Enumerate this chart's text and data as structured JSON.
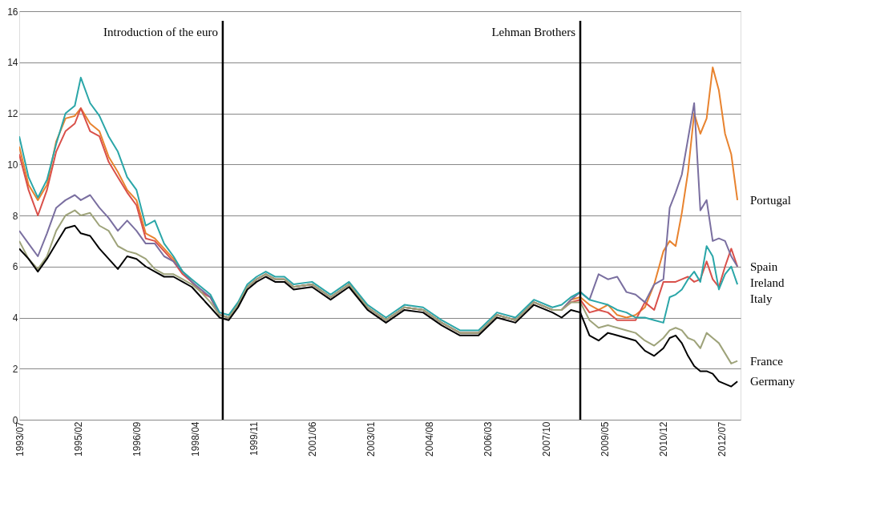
{
  "chart_data": {
    "type": "line",
    "grid": "y",
    "x": [
      "1993-07",
      "1993-10",
      "1994-01",
      "1994-04",
      "1994-07",
      "1994-10",
      "1995-01",
      "1995-03",
      "1995-06",
      "1995-09",
      "1995-12",
      "1996-03",
      "1996-06",
      "1996-09",
      "1996-12",
      "1997-03",
      "1997-06",
      "1997-09",
      "1997-12",
      "1998-03",
      "1998-06",
      "1998-09",
      "1998-12",
      "1999-03",
      "1999-06",
      "1999-09",
      "1999-12",
      "2000-03",
      "2000-06",
      "2000-09",
      "2000-12",
      "2001-06",
      "2001-12",
      "2002-06",
      "2002-12",
      "2003-06",
      "2003-12",
      "2004-06",
      "2004-12",
      "2005-06",
      "2005-12",
      "2006-06",
      "2006-12",
      "2007-06",
      "2007-12",
      "2008-03",
      "2008-06",
      "2008-09",
      "2008-12",
      "2009-03",
      "2009-06",
      "2009-09",
      "2009-12",
      "2010-03",
      "2010-06",
      "2010-09",
      "2010-12",
      "2011-02",
      "2011-04",
      "2011-06",
      "2011-08",
      "2011-10",
      "2011-12",
      "2012-02",
      "2012-04",
      "2012-06",
      "2012-08",
      "2012-10",
      "2012-12"
    ],
    "xlim": [
      "1993-07",
      "2013-01"
    ],
    "xticks": [
      {
        "value": "1993-07",
        "label": "1993/07"
      },
      {
        "value": "1995-02",
        "label": "1995/02"
      },
      {
        "value": "1996-09",
        "label": "1996/09"
      },
      {
        "value": "1998-04",
        "label": "1998/04"
      },
      {
        "value": "1999-11",
        "label": "1999/11"
      },
      {
        "value": "2001-06",
        "label": "2001/06"
      },
      {
        "value": "2003-01",
        "label": "2003/01"
      },
      {
        "value": "2004-08",
        "label": "2004/08"
      },
      {
        "value": "2006-03",
        "label": "2006/03"
      },
      {
        "value": "2007-10",
        "label": "2007/10"
      },
      {
        "value": "2009-05",
        "label": "2009/05"
      },
      {
        "value": "2010-12",
        "label": "2010/12"
      },
      {
        "value": "2012-07",
        "label": "2012/07"
      }
    ],
    "ylim": [
      0,
      16
    ],
    "yticks": [
      0,
      2,
      4,
      6,
      8,
      10,
      12,
      14,
      16
    ],
    "ref_lines": [
      {
        "axis": "x",
        "value": "1999-01",
        "label": "Introduction of the euro",
        "color": "#000000"
      },
      {
        "axis": "x",
        "value": "2008-09",
        "label": "Lehman Brothers",
        "color": "#000000"
      }
    ],
    "series": [
      {
        "name": "Portugal",
        "color": "#e8832f",
        "values": [
          10.7,
          9.2,
          8.6,
          9.2,
          10.9,
          11.8,
          11.9,
          12.2,
          11.6,
          11.3,
          10.3,
          9.7,
          9.0,
          8.6,
          7.3,
          7.1,
          6.7,
          6.3,
          5.8,
          5.4,
          5.0,
          4.8,
          4.1,
          4.0,
          4.5,
          5.2,
          5.5,
          5.7,
          5.5,
          5.5,
          5.2,
          5.3,
          4.8,
          5.3,
          4.4,
          3.9,
          4.4,
          4.3,
          3.8,
          3.4,
          3.4,
          4.1,
          3.9,
          4.6,
          4.3,
          4.3,
          4.7,
          4.8,
          4.5,
          4.3,
          4.5,
          4.1,
          4.0,
          4.1,
          4.4,
          5.3,
          6.6,
          7.0,
          6.8,
          8.1,
          9.7,
          12.0,
          11.2,
          11.8,
          13.8,
          12.9,
          11.2,
          10.4,
          8.6
        ]
      },
      {
        "name": "Spain",
        "color": "#d9504a",
        "values": [
          10.4,
          9.0,
          8.0,
          9.0,
          10.5,
          11.3,
          11.6,
          12.2,
          11.3,
          11.1,
          10.1,
          9.5,
          8.9,
          8.4,
          7.1,
          7.0,
          6.6,
          6.2,
          5.7,
          5.4,
          5.0,
          4.8,
          4.1,
          4.0,
          4.5,
          5.2,
          5.5,
          5.7,
          5.5,
          5.5,
          5.2,
          5.3,
          4.8,
          5.3,
          4.4,
          3.9,
          4.4,
          4.3,
          3.8,
          3.4,
          3.4,
          4.1,
          3.9,
          4.6,
          4.3,
          4.3,
          4.6,
          4.7,
          4.2,
          4.3,
          4.2,
          3.9,
          3.9,
          3.9,
          4.6,
          4.3,
          5.4,
          5.4,
          5.4,
          5.5,
          5.6,
          5.4,
          5.5,
          6.2,
          5.5,
          5.2,
          6.0,
          6.7,
          6.0
        ]
      },
      {
        "name": "Ireland",
        "color": "#7a6fa0",
        "values": [
          7.4,
          6.9,
          6.4,
          7.3,
          8.3,
          8.6,
          8.8,
          8.6,
          8.8,
          8.3,
          7.9,
          7.4,
          7.8,
          7.4,
          6.9,
          6.9,
          6.4,
          6.2,
          5.8,
          5.4,
          5.1,
          4.8,
          4.1,
          4.0,
          4.5,
          5.2,
          5.5,
          5.7,
          5.5,
          5.5,
          5.2,
          5.3,
          4.8,
          5.3,
          4.4,
          3.9,
          4.4,
          4.3,
          3.8,
          3.4,
          3.4,
          4.1,
          3.9,
          4.6,
          4.3,
          4.3,
          4.7,
          5.0,
          4.7,
          5.7,
          5.5,
          5.6,
          5.0,
          4.9,
          4.6,
          5.3,
          5.5,
          8.3,
          8.9,
          9.6,
          11.0,
          12.4,
          8.2,
          8.6,
          7.0,
          7.1,
          7.0,
          6.4,
          6.0
        ]
      },
      {
        "name": "Italy",
        "color": "#2aa6a8",
        "values": [
          11.1,
          9.5,
          8.7,
          9.4,
          10.8,
          12.0,
          12.3,
          13.4,
          12.4,
          11.9,
          11.1,
          10.5,
          9.5,
          9.0,
          7.6,
          7.8,
          6.9,
          6.4,
          5.8,
          5.5,
          5.2,
          4.9,
          4.2,
          4.1,
          4.6,
          5.3,
          5.6,
          5.8,
          5.6,
          5.6,
          5.3,
          5.4,
          4.9,
          5.4,
          4.5,
          4.0,
          4.5,
          4.4,
          3.9,
          3.5,
          3.5,
          4.2,
          4.0,
          4.7,
          4.4,
          4.5,
          4.8,
          5.0,
          4.7,
          4.6,
          4.5,
          4.3,
          4.2,
          4.0,
          4.0,
          3.9,
          3.8,
          4.8,
          4.9,
          5.1,
          5.5,
          5.8,
          5.4,
          6.8,
          6.4,
          5.1,
          5.7,
          6.0,
          5.3
        ]
      },
      {
        "name": "France",
        "color": "#9ea37a",
        "values": [
          7.0,
          6.3,
          5.9,
          6.4,
          7.4,
          8.0,
          8.2,
          8.0,
          8.1,
          7.6,
          7.4,
          6.8,
          6.6,
          6.5,
          6.3,
          5.9,
          5.7,
          5.7,
          5.5,
          5.3,
          5.0,
          4.6,
          4.1,
          4.0,
          4.5,
          5.2,
          5.5,
          5.7,
          5.5,
          5.5,
          5.2,
          5.3,
          4.8,
          5.3,
          4.4,
          3.9,
          4.4,
          4.3,
          3.8,
          3.4,
          3.4,
          4.1,
          3.9,
          4.6,
          4.3,
          4.3,
          4.6,
          4.6,
          3.9,
          3.6,
          3.7,
          3.6,
          3.5,
          3.4,
          3.1,
          2.9,
          3.2,
          3.5,
          3.6,
          3.5,
          3.2,
          3.1,
          2.8,
          3.4,
          3.2,
          3.0,
          2.6,
          2.2,
          2.3
        ]
      },
      {
        "name": "Germany",
        "color": "#000000",
        "values": [
          6.7,
          6.3,
          5.8,
          6.3,
          6.9,
          7.5,
          7.6,
          7.3,
          7.2,
          6.7,
          6.3,
          5.9,
          6.4,
          6.3,
          6.0,
          5.8,
          5.6,
          5.6,
          5.4,
          5.2,
          4.8,
          4.4,
          4.0,
          3.9,
          4.4,
          5.1,
          5.4,
          5.6,
          5.4,
          5.4,
          5.1,
          5.2,
          4.7,
          5.2,
          4.3,
          3.8,
          4.3,
          4.2,
          3.7,
          3.3,
          3.3,
          4.0,
          3.8,
          4.5,
          4.2,
          4.0,
          4.3,
          4.2,
          3.3,
          3.1,
          3.4,
          3.3,
          3.2,
          3.1,
          2.7,
          2.5,
          2.8,
          3.2,
          3.3,
          3.0,
          2.5,
          2.1,
          1.9,
          1.9,
          1.8,
          1.5,
          1.4,
          1.3,
          1.5
        ]
      }
    ]
  }
}
